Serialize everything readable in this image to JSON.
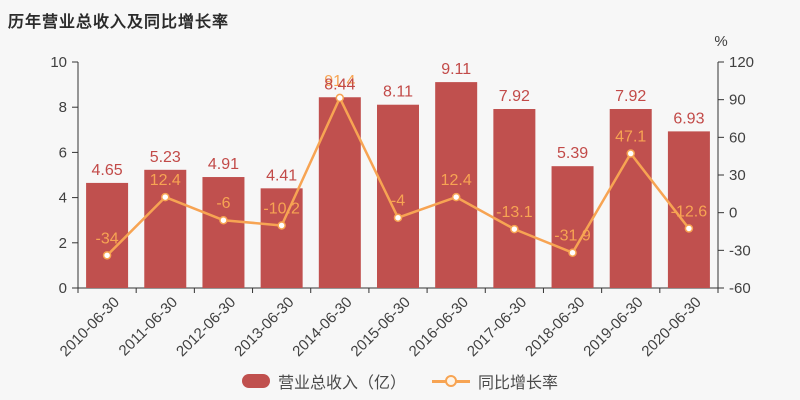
{
  "title": "历年营业总收入及同比增长率",
  "colors": {
    "background": "#f7f7f7",
    "bar": "#c0504e",
    "bar_label": "#c24a48",
    "line": "#f7a453",
    "marker_fill": "#ffffff",
    "axis": "#333333",
    "tick_text": "#404040",
    "title_text": "#2b2b2b",
    "legend_text": "#4a4a4a"
  },
  "chart_data": {
    "type": "bar+line",
    "categories": [
      "2010-06-30",
      "2011-06-30",
      "2012-06-30",
      "2013-06-30",
      "2014-06-30",
      "2015-06-30",
      "2016-06-30",
      "2017-06-30",
      "2018-06-30",
      "2019-06-30",
      "2020-06-30"
    ],
    "series": [
      {
        "name": "营业总收入（亿）",
        "type": "bar",
        "axis": "left",
        "values": [
          4.65,
          5.23,
          4.91,
          4.41,
          8.44,
          8.11,
          9.11,
          7.92,
          5.39,
          7.92,
          6.93
        ],
        "labels": [
          "4.65",
          "5.23",
          "4.91",
          "4.41",
          "8.44",
          "8.11",
          "9.11",
          "7.92",
          "5.39",
          "7.92",
          "6.93"
        ]
      },
      {
        "name": "同比增长率",
        "type": "line",
        "axis": "right",
        "values": [
          -34,
          12.4,
          -6,
          -10.2,
          91.4,
          -4,
          12.4,
          -13.1,
          -31.9,
          47.1,
          -12.6
        ],
        "labels": [
          "-34",
          "12.4",
          "-6",
          "-10.2",
          "91.4",
          "-4",
          "12.4",
          "-13.1",
          "-31.9",
          "47.1",
          "-12.6"
        ]
      }
    ],
    "left_axis": {
      "min": 0,
      "max": 10,
      "ticks": [
        0,
        2,
        4,
        6,
        8,
        10
      ]
    },
    "right_axis": {
      "min": -60,
      "max": 120,
      "ticks": [
        -60,
        -30,
        0,
        30,
        60,
        90,
        120
      ],
      "unit": "%"
    },
    "grid": "off",
    "legend_position": "bottom-center",
    "x_label_rotation": -45
  }
}
